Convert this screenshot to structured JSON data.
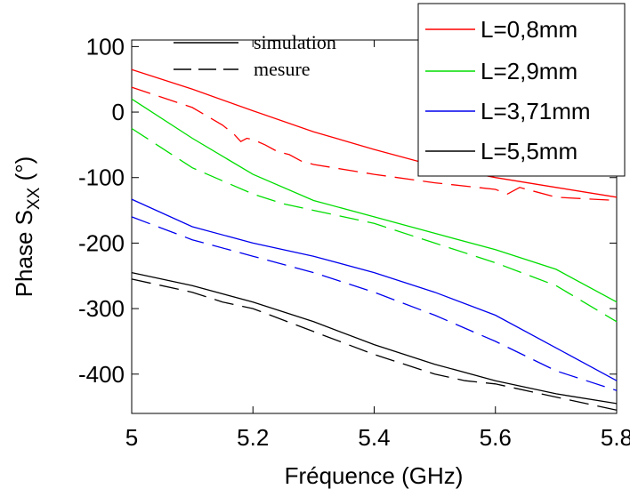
{
  "chart_data": {
    "type": "line",
    "xlabel": "Fréquence (GHz)",
    "ylabel_main": "Phase S",
    "ylabel_sub": "XX",
    "ylabel_unit": " (°)",
    "xlim": [
      5,
      5.8
    ],
    "ylim": [
      -460,
      110
    ],
    "xticks": [
      5,
      5.2,
      5.4,
      5.6,
      5.8
    ],
    "xtick_labels": [
      "5",
      "5.2",
      "5.4",
      "5.6",
      "5.8"
    ],
    "yticks": [
      100,
      0,
      -100,
      -200,
      -300,
      -400
    ],
    "ytick_labels": [
      "100",
      "0",
      "-100",
      "-200",
      "-300",
      "-400"
    ],
    "style_legend": [
      {
        "label": "simulation",
        "dash": "solid"
      },
      {
        "label": "mesure",
        "dash": "dashed"
      }
    ],
    "series": [
      {
        "name": "L=0,8mm",
        "color": "#ff0000",
        "simulation": {
          "x": [
            5.0,
            5.1,
            5.2,
            5.3,
            5.4,
            5.5,
            5.6,
            5.7,
            5.8
          ],
          "y": [
            65,
            35,
            2,
            -30,
            -57,
            -82,
            -100,
            -115,
            -130
          ]
        },
        "mesure": {
          "x": [
            5.0,
            5.1,
            5.15,
            5.17,
            5.18,
            5.19,
            5.2,
            5.22,
            5.24,
            5.26,
            5.28,
            5.3,
            5.4,
            5.5,
            5.6,
            5.62,
            5.64,
            5.7,
            5.8
          ],
          "y": [
            38,
            7,
            -20,
            -35,
            -45,
            -40,
            -42,
            -50,
            -60,
            -65,
            -75,
            -80,
            -95,
            -108,
            -118,
            -125,
            -115,
            -130,
            -135
          ]
        }
      },
      {
        "name": "L=2,9mm",
        "color": "#00dd00",
        "simulation": {
          "x": [
            5.0,
            5.1,
            5.2,
            5.3,
            5.4,
            5.5,
            5.6,
            5.7,
            5.8
          ],
          "y": [
            20,
            -40,
            -95,
            -135,
            -160,
            -185,
            -210,
            -240,
            -290
          ]
        },
        "mesure": {
          "x": [
            5.0,
            5.1,
            5.2,
            5.25,
            5.3,
            5.4,
            5.5,
            5.6,
            5.7,
            5.8
          ],
          "y": [
            -25,
            -85,
            -125,
            -140,
            -150,
            -170,
            -200,
            -230,
            -265,
            -320
          ]
        }
      },
      {
        "name": "L=3,71mm",
        "color": "#0000ee",
        "simulation": {
          "x": [
            5.0,
            5.1,
            5.2,
            5.3,
            5.4,
            5.5,
            5.6,
            5.7,
            5.8
          ],
          "y": [
            -133,
            -175,
            -200,
            -220,
            -245,
            -275,
            -310,
            -360,
            -410
          ]
        },
        "mesure": {
          "x": [
            5.0,
            5.1,
            5.2,
            5.3,
            5.4,
            5.5,
            5.6,
            5.7,
            5.8
          ],
          "y": [
            -160,
            -195,
            -220,
            -245,
            -275,
            -310,
            -350,
            -395,
            -425
          ]
        }
      },
      {
        "name": "L=5,5mm",
        "color": "#000000",
        "simulation": {
          "x": [
            5.0,
            5.1,
            5.2,
            5.3,
            5.4,
            5.5,
            5.6,
            5.7,
            5.8
          ],
          "y": [
            -245,
            -265,
            -290,
            -320,
            -355,
            -385,
            -410,
            -430,
            -445
          ]
        },
        "mesure": {
          "x": [
            5.0,
            5.1,
            5.15,
            5.2,
            5.3,
            5.4,
            5.5,
            5.55,
            5.6,
            5.7,
            5.8
          ],
          "y": [
            -255,
            -275,
            -290,
            -300,
            -335,
            -370,
            -400,
            -410,
            -415,
            -435,
            -455
          ]
        }
      }
    ],
    "grid": false,
    "legend_position": "top-right"
  }
}
